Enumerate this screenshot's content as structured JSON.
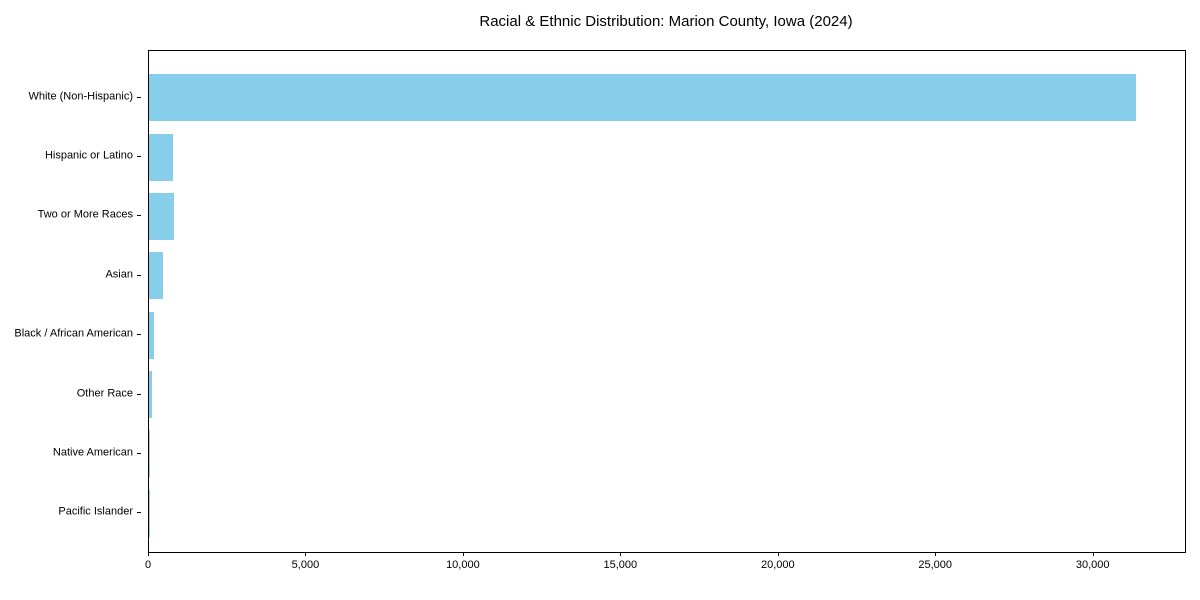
{
  "figure": {
    "background": "#ffffff",
    "plot_border_color": "#000000"
  },
  "chart_data": {
    "type": "bar",
    "orientation": "horizontal",
    "title": "Racial & Ethnic Distribution: Marion County, Iowa (2024)",
    "categories": [
      "White (Non-Hispanic)",
      "Hispanic or Latino",
      "Two or More Races",
      "Asian",
      "Black / African American",
      "Other Race",
      "Native American",
      "Pacific Islander"
    ],
    "values": [
      31350,
      770,
      805,
      455,
      160,
      95,
      15,
      5
    ],
    "xlabel": "",
    "ylabel": "",
    "xlim": [
      0,
      32900
    ],
    "x_ticks": [
      0,
      5000,
      10000,
      15000,
      20000,
      25000,
      30000
    ],
    "x_tick_labels": [
      "0",
      "5,000",
      "10,000",
      "15,000",
      "20,000",
      "25,000",
      "30,000"
    ],
    "bar_color": "#87CEEB",
    "axis_color": "#000000",
    "grid": false,
    "legend_position": "none"
  }
}
